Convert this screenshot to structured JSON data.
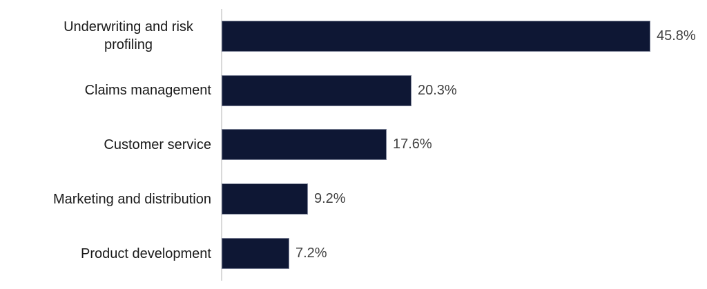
{
  "chart_data": {
    "type": "bar",
    "orientation": "horizontal",
    "title": "",
    "xlabel": "",
    "ylabel": "",
    "categories": [
      "Underwriting and risk profiling",
      "Claims management",
      "Customer service",
      "Marketing and distribution",
      "Product development"
    ],
    "values": [
      45.8,
      20.3,
      17.6,
      9.2,
      7.2
    ],
    "value_labels": [
      "45.8%",
      "20.3%",
      "17.6%",
      "9.2%",
      "7.2%"
    ],
    "bar_color": "#0e1734",
    "value_label_color": "#404040",
    "category_label_color": "#1a1a1a",
    "axis_line_color": "#d9d9d9",
    "xlim": [
      0,
      51.2
    ],
    "grid": false,
    "legend": "none",
    "data_labels": "outside-end"
  }
}
